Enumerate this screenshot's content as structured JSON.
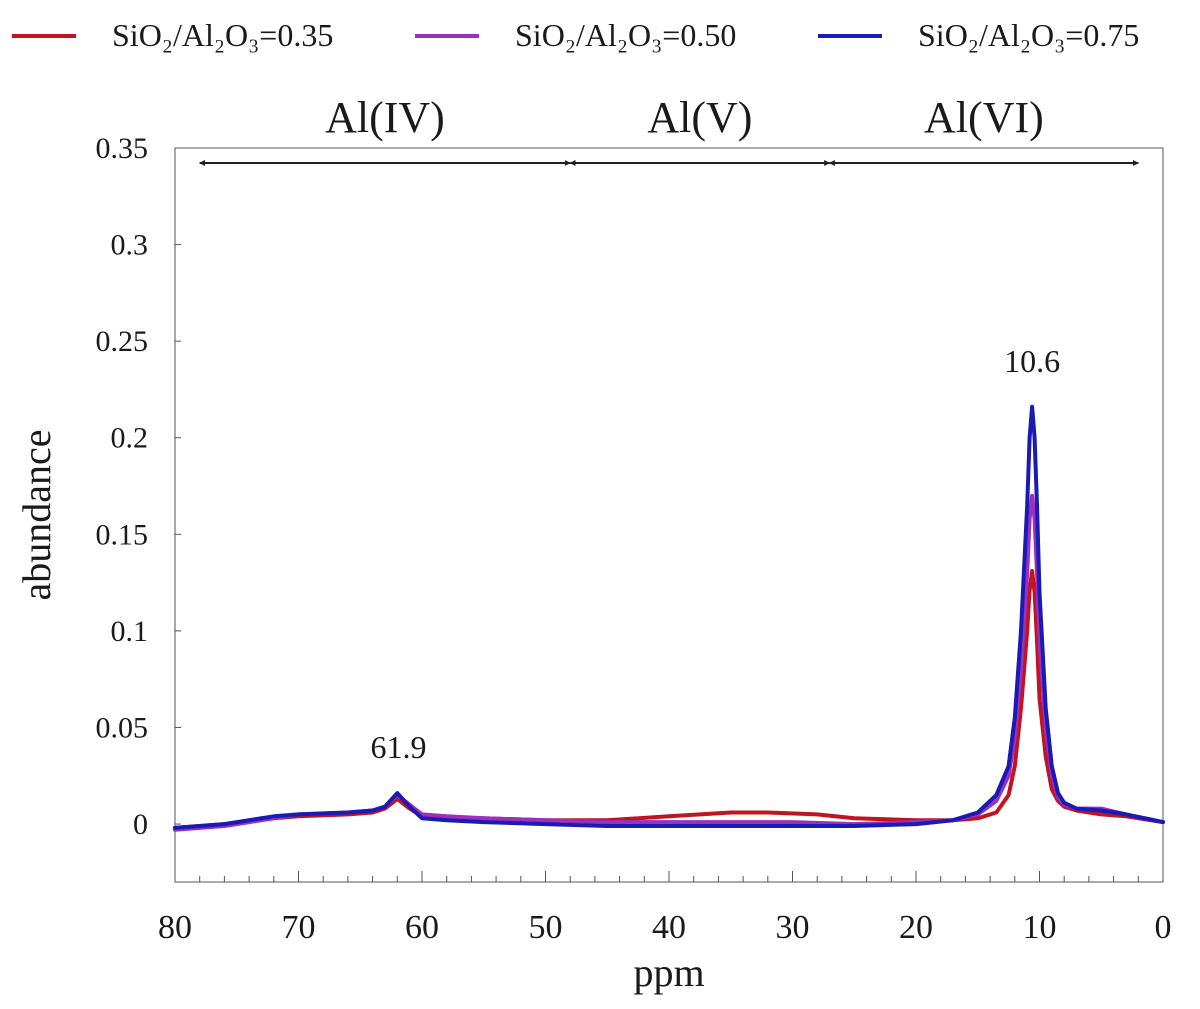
{
  "chart_data": {
    "type": "line",
    "xlabel": "ppm",
    "ylabel": "abundance",
    "xlim": [
      80,
      0
    ],
    "ylim": [
      -0.03,
      0.35
    ],
    "x_reversed": true,
    "xticks": [
      80,
      70,
      60,
      50,
      40,
      30,
      20,
      10,
      0
    ],
    "yticks": [
      0,
      0.05,
      0.1,
      0.15,
      0.2,
      0.25,
      0.3,
      0.35
    ],
    "ytick_labels": [
      "0",
      "0.05",
      "0.1",
      "0.15",
      "0.2",
      "0.25",
      "0.3",
      "0.35"
    ],
    "grid": false,
    "legend_position": "top",
    "series": [
      {
        "name": "SiO₂/Al₂O₃=0.35",
        "color": "#c0141e",
        "x": [
          80,
          76,
          72,
          70,
          66,
          64,
          63,
          62,
          61,
          60,
          58,
          55,
          50,
          45,
          40,
          35,
          32,
          28,
          25,
          20,
          17,
          15,
          13.5,
          12.5,
          12,
          11.5,
          11,
          10.8,
          10.6,
          10.4,
          10.2,
          10,
          9.5,
          9,
          8.5,
          8,
          7,
          5,
          3,
          0
        ],
        "y": [
          -0.002,
          0.0,
          0.003,
          0.004,
          0.005,
          0.006,
          0.008,
          0.013,
          0.008,
          0.004,
          0.003,
          0.003,
          0.002,
          0.002,
          0.004,
          0.006,
          0.006,
          0.005,
          0.003,
          0.002,
          0.002,
          0.003,
          0.006,
          0.015,
          0.03,
          0.06,
          0.1,
          0.121,
          0.131,
          0.12,
          0.095,
          0.065,
          0.035,
          0.018,
          0.012,
          0.009,
          0.007,
          0.005,
          0.004,
          0.001
        ]
      },
      {
        "name": "SiO₂/Al₂O₃=0.50",
        "color": "#9b2fc0",
        "x": [
          80,
          76,
          72,
          70,
          66,
          64,
          63,
          62,
          61,
          60,
          58,
          55,
          50,
          45,
          40,
          35,
          30,
          25,
          20,
          17,
          15,
          13.5,
          12.5,
          12,
          11.5,
          11,
          10.8,
          10.6,
          10.4,
          10.2,
          10,
          9.5,
          9,
          8.5,
          8,
          7,
          5,
          3,
          0
        ],
        "y": [
          -0.003,
          -0.001,
          0.003,
          0.005,
          0.006,
          0.007,
          0.009,
          0.015,
          0.01,
          0.005,
          0.004,
          0.003,
          0.002,
          0.001,
          0.001,
          0.001,
          0.001,
          0.0,
          0.001,
          0.002,
          0.005,
          0.012,
          0.025,
          0.045,
          0.08,
          0.13,
          0.158,
          0.17,
          0.158,
          0.13,
          0.095,
          0.05,
          0.025,
          0.014,
          0.01,
          0.008,
          0.008,
          0.005,
          0.001
        ]
      },
      {
        "name": "SiO₂/Al₂O₃=0.75",
        "color": "#1a1ab4",
        "x": [
          80,
          76,
          72,
          70,
          66,
          64,
          63,
          62,
          61,
          60,
          58,
          55,
          50,
          45,
          40,
          35,
          30,
          25,
          20,
          17,
          15,
          13.5,
          12.5,
          12,
          11.5,
          11,
          10.8,
          10.6,
          10.4,
          10.2,
          10,
          9.5,
          9,
          8.5,
          8,
          7,
          5,
          3,
          0
        ],
        "y": [
          -0.002,
          0.0,
          0.004,
          0.005,
          0.006,
          0.007,
          0.009,
          0.016,
          0.009,
          0.003,
          0.002,
          0.001,
          0.0,
          -0.001,
          -0.001,
          -0.001,
          -0.001,
          -0.001,
          0.0,
          0.002,
          0.006,
          0.015,
          0.03,
          0.055,
          0.1,
          0.165,
          0.2,
          0.216,
          0.2,
          0.165,
          0.12,
          0.06,
          0.03,
          0.016,
          0.011,
          0.008,
          0.007,
          0.005,
          0.001
        ]
      }
    ],
    "regions": [
      {
        "label": "Al(IV)",
        "from": 78,
        "to": 48
      },
      {
        "label": "Al(V)",
        "from": 48,
        "to": 27
      },
      {
        "label": "Al(VI)",
        "from": 27,
        "to": 2
      }
    ],
    "annotations": [
      {
        "text": "61.9",
        "x": 61.9,
        "y": 0.016
      },
      {
        "text": "10.6",
        "x": 10.6,
        "y": 0.216
      }
    ]
  }
}
